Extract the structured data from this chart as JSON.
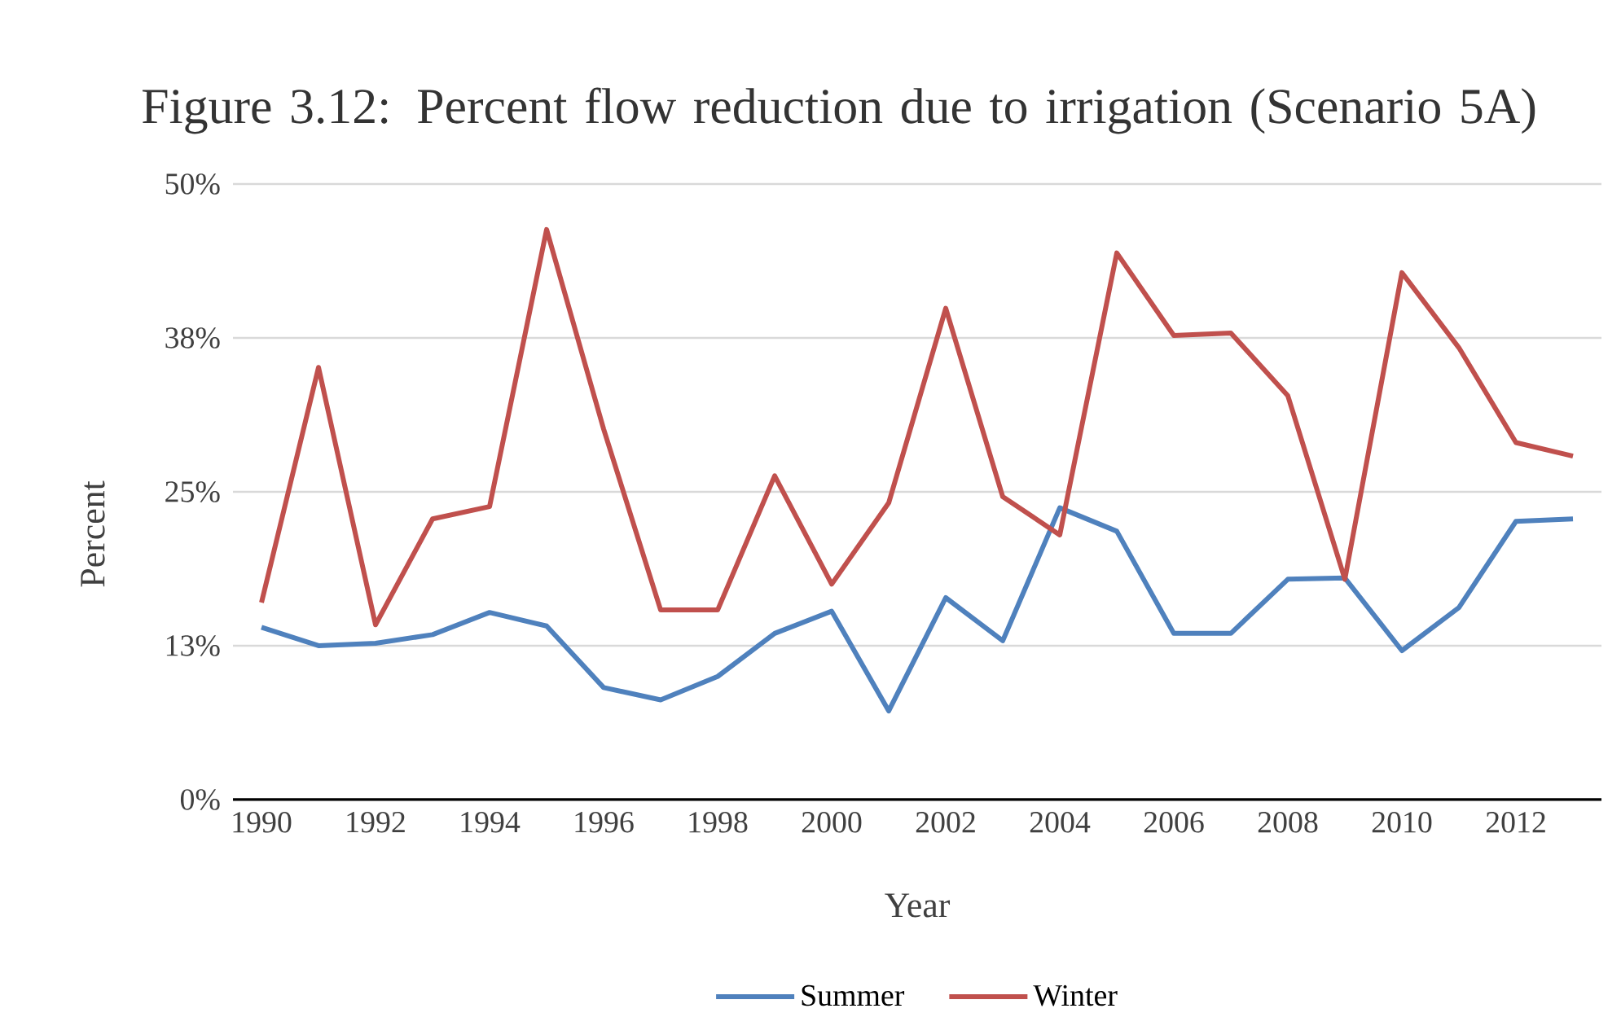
{
  "chart_data": {
    "type": "line",
    "title": "Figure 3.12: Percent flow reduction due to irrigation (Scenario 5A)",
    "xlabel": "Year",
    "ylabel": "Percent",
    "x": [
      1990,
      1991,
      1992,
      1993,
      1994,
      1995,
      1996,
      1997,
      1998,
      1999,
      2000,
      2001,
      2002,
      2003,
      2004,
      2005,
      2006,
      2007,
      2008,
      2009,
      2010,
      2011,
      2012,
      2013
    ],
    "series": [
      {
        "name": "Summer",
        "color": "#4f81bd",
        "values": [
          14.0,
          12.5,
          12.7,
          13.4,
          15.2,
          14.1,
          9.1,
          8.1,
          10.0,
          13.5,
          15.3,
          7.2,
          16.4,
          12.9,
          23.7,
          21.8,
          13.5,
          13.5,
          17.9,
          18.0,
          12.1,
          15.6,
          22.6,
          22.8
        ]
      },
      {
        "name": "Winter",
        "color": "#c0504d",
        "values": [
          16.0,
          35.1,
          14.2,
          22.8,
          23.8,
          46.3,
          30.1,
          15.4,
          15.4,
          26.3,
          17.5,
          24.1,
          39.9,
          24.6,
          21.5,
          44.4,
          37.7,
          37.9,
          32.8,
          17.9,
          42.8,
          36.7,
          29.0,
          27.9
        ]
      }
    ],
    "xlim": [
      1989.5,
      2013.5
    ],
    "ylim": [
      0,
      50
    ],
    "xticks": [
      1990,
      1992,
      1994,
      1996,
      1998,
      2000,
      2002,
      2004,
      2006,
      2008,
      2010,
      2012
    ],
    "yticks": [
      {
        "value": 0,
        "label": "0%"
      },
      {
        "value": 12.5,
        "label": "13%"
      },
      {
        "value": 25,
        "label": "25%"
      },
      {
        "value": 37.5,
        "label": "38%"
      },
      {
        "value": 50,
        "label": "50%"
      }
    ],
    "grid": "y",
    "legend": "bottom",
    "marker": "none"
  }
}
